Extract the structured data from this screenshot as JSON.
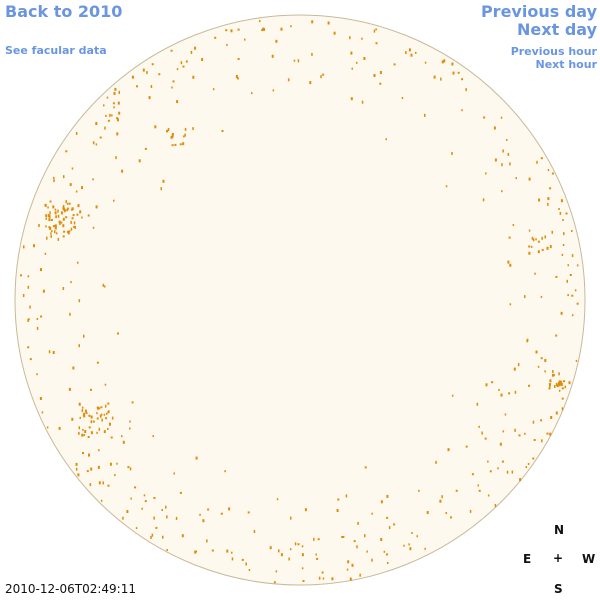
{
  "navigation": {
    "back_label": "Back to 2010",
    "facular_label": "See facular data",
    "prev_day_label": "Previous day",
    "next_day_label": "Next day",
    "prev_hour_label": "Previous hour",
    "next_hour_label": "Next hour"
  },
  "timestamp": "2010-12-06T02:49:11",
  "compass": {
    "north": "N",
    "east": "E",
    "center": "+",
    "west": "W",
    "south": "S"
  },
  "colors": {
    "link": "#6a96e0",
    "disk_fill": "#fdf9ee",
    "disk_border": "#c9b99a",
    "facula": "#e08c0a"
  }
}
